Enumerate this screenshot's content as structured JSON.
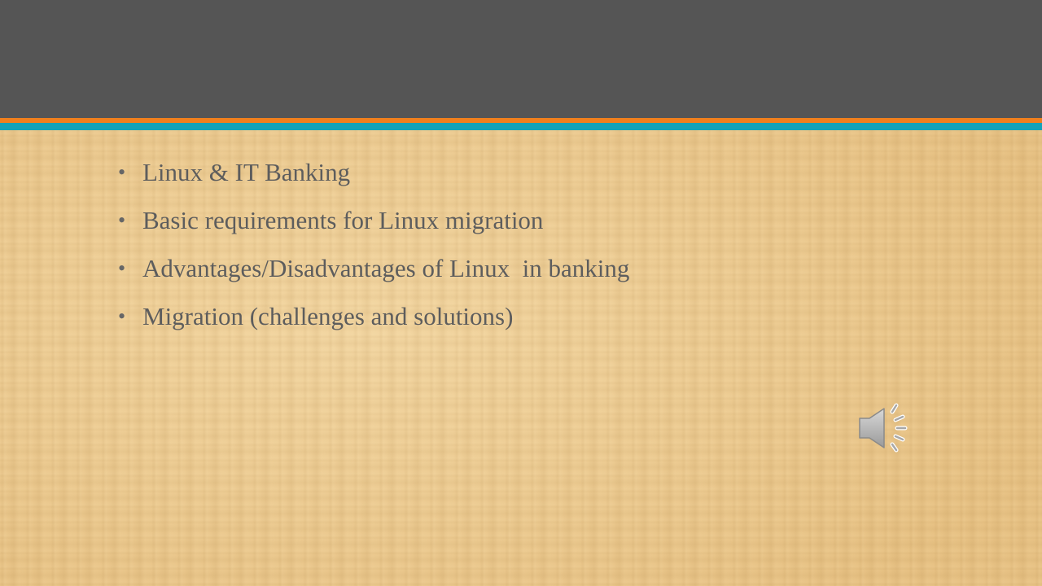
{
  "slide": {
    "title": "",
    "bullets": [
      "Linux & IT Banking",
      "Basic requirements for Linux migration",
      "Advantages/Disadvantages of Linux  in banking",
      "Migration (challenges and solutions)"
    ],
    "bullet_glyph": "•",
    "audio_icon": "speaker-icon"
  },
  "colors": {
    "title_bar": "#555555",
    "accent_orange": "#f07f1d",
    "accent_teal": "#12a2b8",
    "text": "#5d5d5d",
    "background": "#ecc98d"
  }
}
